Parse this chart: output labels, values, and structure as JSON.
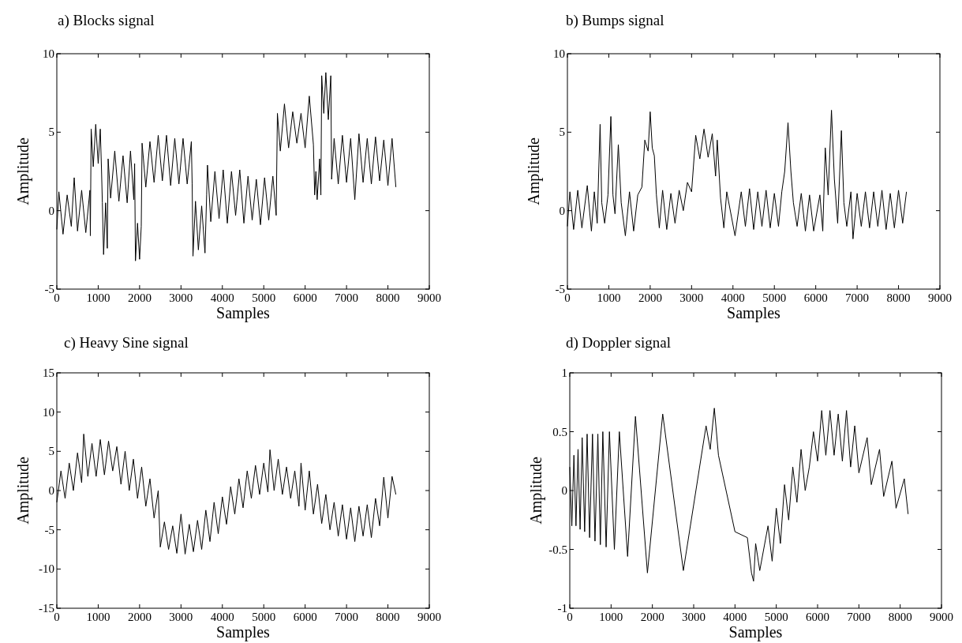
{
  "chart_data": [
    {
      "type": "line",
      "title": "a) Blocks signal",
      "xlabel": "Samples",
      "ylabel": "Amplitude",
      "color": "#000000",
      "xlim": [
        0,
        9000
      ],
      "xticks": [
        0,
        1000,
        2000,
        3000,
        4000,
        5000,
        6000,
        7000,
        8000,
        9000
      ],
      "ylim": [
        -5,
        10
      ],
      "yticks": [
        -5,
        0,
        5,
        10
      ],
      "grid": false,
      "legend": false,
      "x": [
        0,
        50,
        150,
        250,
        350,
        420,
        500,
        600,
        700,
        800,
        810,
        830,
        880,
        940,
        1000,
        1050,
        1080,
        1100,
        1130,
        1180,
        1220,
        1240,
        1300,
        1400,
        1500,
        1600,
        1700,
        1780,
        1860,
        1880,
        1900,
        1950,
        2000,
        2040,
        2060,
        2150,
        2250,
        2350,
        2450,
        2550,
        2650,
        2750,
        2850,
        2950,
        3050,
        3150,
        3250,
        3270,
        3290,
        3350,
        3420,
        3500,
        3580,
        3620,
        3640,
        3720,
        3820,
        3920,
        4020,
        4120,
        4220,
        4320,
        4420,
        4520,
        4620,
        4720,
        4820,
        4920,
        5020,
        5120,
        5220,
        5300,
        5330,
        5400,
        5500,
        5600,
        5700,
        5800,
        5900,
        6000,
        6100,
        6200,
        6230,
        6260,
        6290,
        6350,
        6380,
        6400,
        6450,
        6500,
        6560,
        6620,
        6640,
        6700,
        6800,
        6900,
        7000,
        7100,
        7200,
        7300,
        7400,
        7500,
        7600,
        7700,
        7800,
        7900,
        8000,
        8100,
        8192
      ],
      "values": [
        -1.2,
        1.2,
        -1.5,
        1.0,
        -1.0,
        2.1,
        -1.3,
        1.3,
        -1.4,
        1.3,
        -1.6,
        5.2,
        2.8,
        5.5,
        3.0,
        5.2,
        2.6,
        0.5,
        -2.8,
        0.5,
        -2.4,
        3.3,
        0.8,
        3.8,
        0.6,
        3.5,
        0.5,
        3.8,
        0.7,
        3.0,
        -3.2,
        -0.8,
        -3.1,
        -1.0,
        4.3,
        1.5,
        4.4,
        1.8,
        4.8,
        1.9,
        4.8,
        1.6,
        4.6,
        1.7,
        4.6,
        1.7,
        4.4,
        1.7,
        -2.9,
        0.6,
        -2.5,
        0.3,
        -2.7,
        1.0,
        2.9,
        -0.7,
        2.5,
        -0.5,
        2.6,
        -0.8,
        2.5,
        -0.3,
        2.6,
        -0.8,
        2.2,
        -0.6,
        2.0,
        -0.9,
        2.1,
        -0.6,
        2.2,
        -0.3,
        6.2,
        3.8,
        6.8,
        4.0,
        6.3,
        4.3,
        6.2,
        4.0,
        7.3,
        4.2,
        1.0,
        2.5,
        0.7,
        3.3,
        1.0,
        8.6,
        6.2,
        8.8,
        5.8,
        8.6,
        2.0,
        4.6,
        1.7,
        4.8,
        1.8,
        4.6,
        0.7,
        4.9,
        1.8,
        4.6,
        1.7,
        4.7,
        1.9,
        4.5,
        1.6,
        4.6,
        1.5
      ]
    },
    {
      "type": "line",
      "title": "b) Bumps signal",
      "xlabel": "Samples",
      "ylabel": "Amplitude",
      "color": "#000000",
      "xlim": [
        0,
        9000
      ],
      "xticks": [
        0,
        1000,
        2000,
        3000,
        4000,
        5000,
        6000,
        7000,
        8000,
        9000
      ],
      "ylim": [
        -5,
        10
      ],
      "yticks": [
        -5,
        0,
        5,
        10
      ],
      "grid": false,
      "legend": false,
      "x": [
        0,
        60,
        150,
        250,
        350,
        480,
        580,
        650,
        720,
        790,
        830,
        900,
        980,
        1050,
        1100,
        1150,
        1230,
        1300,
        1400,
        1500,
        1600,
        1700,
        1800,
        1870,
        1950,
        2000,
        2050,
        2100,
        2150,
        2220,
        2300,
        2400,
        2500,
        2600,
        2700,
        2800,
        2900,
        3000,
        3100,
        3200,
        3300,
        3400,
        3500,
        3580,
        3620,
        3700,
        3780,
        3850,
        4050,
        4200,
        4300,
        4400,
        4500,
        4600,
        4700,
        4800,
        4900,
        5000,
        5100,
        5180,
        5250,
        5330,
        5400,
        5460,
        5550,
        5650,
        5750,
        5850,
        5950,
        6100,
        6170,
        6230,
        6300,
        6380,
        6450,
        6530,
        6620,
        6680,
        6750,
        6850,
        6900,
        7000,
        7100,
        7200,
        7300,
        7400,
        7500,
        7600,
        7700,
        7800,
        7900,
        8000,
        8100,
        8192
      ],
      "values": [
        -1.0,
        1.2,
        -1.2,
        1.3,
        -1.1,
        1.6,
        -1.3,
        1.2,
        -0.8,
        5.5,
        0.5,
        -0.8,
        1.0,
        6.0,
        1.0,
        -0.2,
        4.2,
        0.5,
        -1.6,
        1.2,
        -1.3,
        1.0,
        1.5,
        4.5,
        3.8,
        6.3,
        4.0,
        3.5,
        1.0,
        -1.1,
        1.3,
        -1.2,
        1.1,
        -0.8,
        1.3,
        0.0,
        1.8,
        1.2,
        4.8,
        3.3,
        5.2,
        3.4,
        4.9,
        2.2,
        4.5,
        0.8,
        -1.1,
        1.2,
        -1.6,
        1.2,
        -1.0,
        1.4,
        -1.2,
        1.2,
        -1.0,
        1.3,
        -1.1,
        1.1,
        -1.0,
        1.2,
        2.5,
        5.6,
        2.5,
        0.5,
        -1.0,
        1.1,
        -1.3,
        1.0,
        -1.3,
        1.0,
        -1.3,
        4.0,
        1.0,
        6.4,
        2.0,
        -0.8,
        5.1,
        0.5,
        -1.0,
        1.2,
        -1.8,
        1.1,
        -1.0,
        1.2,
        -1.1,
        1.2,
        -1.0,
        1.3,
        -1.2,
        1.1,
        -1.1,
        1.3,
        -0.8,
        1.2
      ]
    },
    {
      "type": "line",
      "title": "c) Heavy Sine signal",
      "xlabel": "Samples",
      "ylabel": "Amplitude",
      "color": "#000000",
      "xlim": [
        0,
        9000
      ],
      "xticks": [
        0,
        1000,
        2000,
        3000,
        4000,
        5000,
        6000,
        7000,
        8000,
        9000
      ],
      "ylim": [
        -15,
        15
      ],
      "yticks": [
        -15,
        -10,
        -5,
        0,
        5,
        10,
        15
      ],
      "grid": false,
      "legend": false,
      "x": [
        0,
        100,
        200,
        300,
        400,
        500,
        600,
        650,
        750,
        850,
        950,
        1050,
        1150,
        1250,
        1350,
        1450,
        1550,
        1650,
        1750,
        1850,
        1950,
        2050,
        2150,
        2250,
        2350,
        2450,
        2500,
        2600,
        2700,
        2800,
        2900,
        3000,
        3100,
        3200,
        3300,
        3400,
        3500,
        3600,
        3700,
        3800,
        3900,
        4000,
        4100,
        4200,
        4300,
        4400,
        4500,
        4600,
        4700,
        4800,
        4900,
        5000,
        5100,
        5150,
        5250,
        5350,
        5450,
        5550,
        5650,
        5750,
        5850,
        5900,
        6000,
        6100,
        6200,
        6300,
        6400,
        6500,
        6600,
        6700,
        6800,
        6900,
        7000,
        7100,
        7200,
        7300,
        7400,
        7500,
        7600,
        7700,
        7800,
        7900,
        8000,
        8100,
        8192
      ],
      "values": [
        -1.5,
        2.5,
        -1.0,
        3.5,
        0.0,
        4.8,
        1.0,
        7.2,
        1.8,
        6.0,
        1.8,
        6.5,
        2.0,
        6.3,
        2.5,
        5.6,
        0.8,
        5.0,
        0.0,
        4.0,
        -1.0,
        3.0,
        -2.0,
        1.5,
        -3.5,
        0.0,
        -7.2,
        -4.0,
        -7.5,
        -4.5,
        -8.0,
        -3.0,
        -8.1,
        -4.3,
        -7.8,
        -3.8,
        -7.5,
        -2.5,
        -6.5,
        -1.5,
        -5.5,
        -0.8,
        -4.3,
        0.5,
        -3.0,
        1.5,
        -2.2,
        2.5,
        -1.0,
        3.2,
        -0.5,
        3.5,
        -0.2,
        5.2,
        0.0,
        4.0,
        -0.5,
        3.0,
        -1.0,
        2.5,
        -2.0,
        3.5,
        -2.5,
        2.5,
        -3.0,
        0.8,
        -4.2,
        -0.5,
        -5.0,
        -1.5,
        -5.8,
        -1.8,
        -6.2,
        -2.2,
        -6.5,
        -2.0,
        -5.8,
        -1.8,
        -6.0,
        -1.0,
        -4.5,
        1.7,
        -3.5,
        1.8,
        -0.5
      ]
    },
    {
      "type": "line",
      "title": "d) Doppler signal",
      "xlabel": "Samples",
      "ylabel": "Amplitude",
      "color": "#000000",
      "xlim": [
        0,
        9000
      ],
      "xticks": [
        0,
        1000,
        2000,
        3000,
        4000,
        5000,
        6000,
        7000,
        8000,
        9000
      ],
      "ylim": [
        -1,
        1
      ],
      "yticks": [
        -1,
        -0.5,
        0,
        0.5,
        1
      ],
      "grid": false,
      "legend": false,
      "x": [
        0,
        50,
        100,
        150,
        200,
        250,
        300,
        360,
        420,
        480,
        550,
        610,
        680,
        740,
        800,
        880,
        960,
        1080,
        1200,
        1400,
        1590,
        1880,
        2250,
        2750,
        3300,
        3400,
        3500,
        3600,
        4000,
        4300,
        4400,
        4450,
        4500,
        4600,
        4800,
        4900,
        5000,
        5100,
        5200,
        5300,
        5400,
        5500,
        5600,
        5700,
        5800,
        5900,
        6000,
        6100,
        6200,
        6300,
        6400,
        6500,
        6600,
        6700,
        6800,
        6900,
        7000,
        7200,
        7300,
        7500,
        7600,
        7800,
        7900,
        8100,
        8192
      ],
      "values": [
        0.2,
        -0.3,
        0.3,
        -0.3,
        0.35,
        -0.33,
        0.45,
        -0.35,
        0.48,
        -0.4,
        0.48,
        -0.43,
        0.48,
        -0.46,
        0.5,
        -0.48,
        0.5,
        -0.5,
        0.5,
        -0.56,
        0.63,
        -0.7,
        0.65,
        -0.68,
        0.55,
        0.35,
        0.7,
        0.3,
        -0.35,
        -0.4,
        -0.7,
        -0.77,
        -0.45,
        -0.68,
        -0.3,
        -0.6,
        -0.15,
        -0.45,
        0.05,
        -0.25,
        0.2,
        -0.1,
        0.35,
        0.0,
        0.2,
        0.5,
        0.25,
        0.68,
        0.3,
        0.68,
        0.3,
        0.65,
        0.25,
        0.68,
        0.2,
        0.55,
        0.15,
        0.45,
        0.05,
        0.35,
        -0.05,
        0.25,
        -0.15,
        0.1,
        -0.2
      ]
    }
  ]
}
